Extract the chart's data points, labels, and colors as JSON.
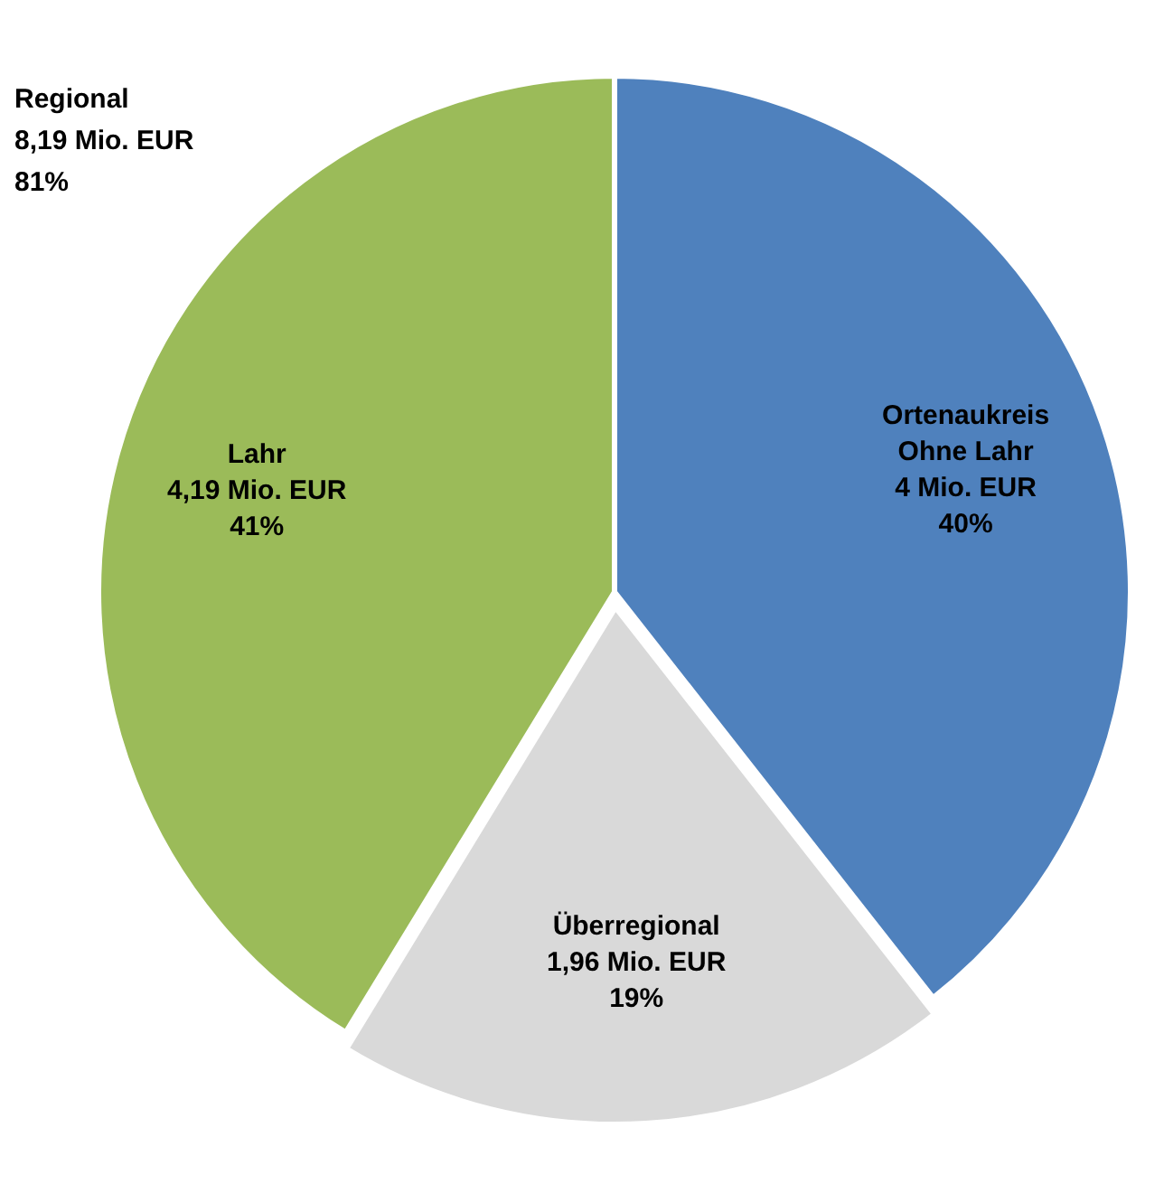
{
  "chart_data": {
    "type": "pie",
    "categories": [
      "Ortenaukreis\nOhne Lahr",
      "Überregional",
      "Lahr"
    ],
    "values": [
      4,
      1.96,
      4.19
    ],
    "colors": [
      "#4f81bd",
      "#d9d9d9",
      "#9bbb59"
    ],
    "value_labels": [
      "4 Mio. EUR\n40%",
      "1,96 Mio. EUR\n19%",
      "4,19 Mio. EUR\n41%"
    ],
    "annotations": [
      "Regional\n8,19 Mio. EUR\n81%"
    ],
    "legend": false
  }
}
